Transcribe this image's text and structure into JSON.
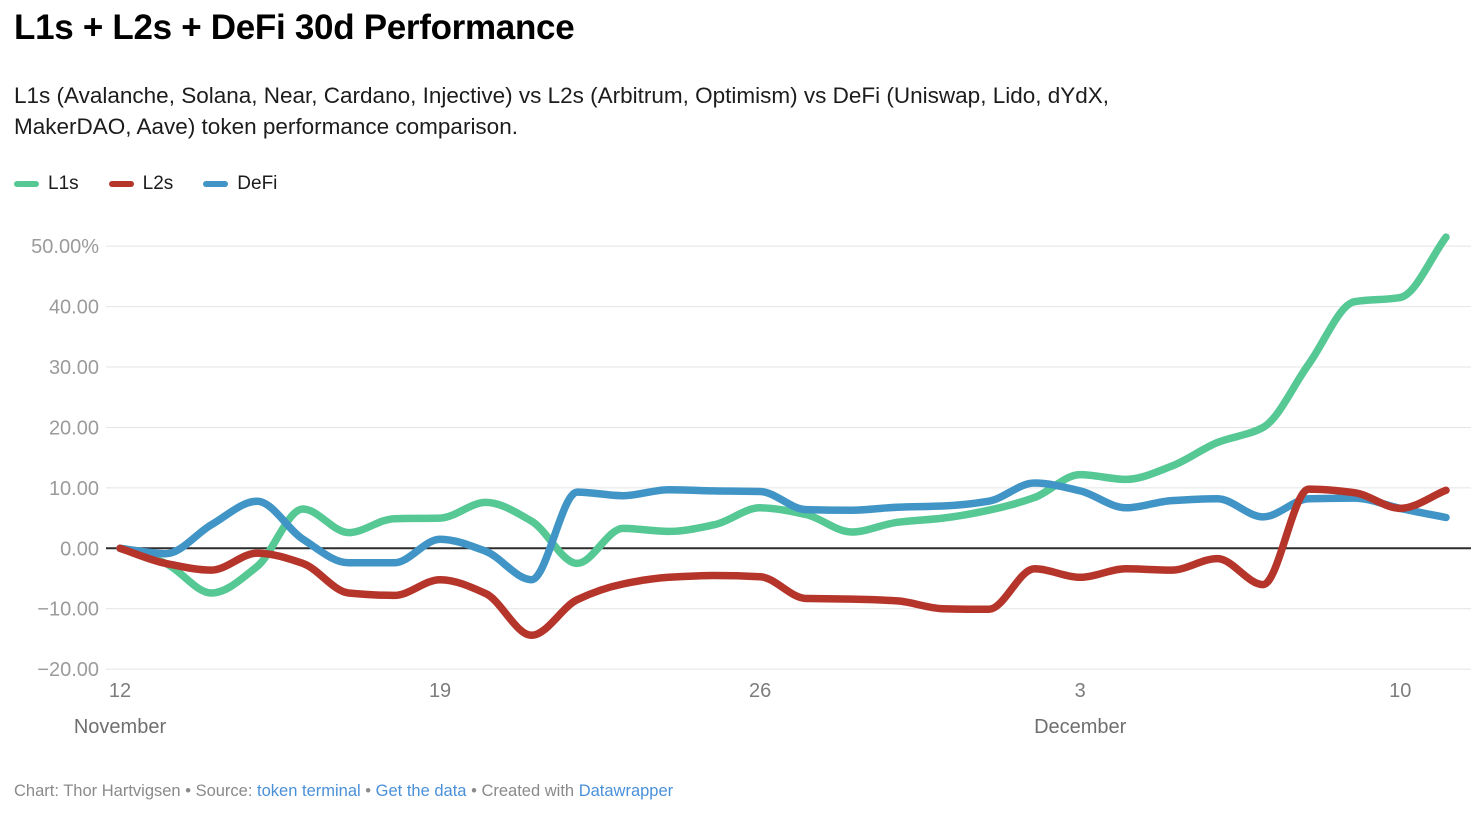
{
  "header": {
    "title": "L1s + L2s + DeFi 30d Performance",
    "subtitle_lines": [
      "L1s (Avalanche, Solana, Near, Cardano, Injective) vs L2s (Arbitrum, Optimism) vs DeFi (Uniswap, Lido, dYdX,",
      "MakerDAO, Aave) token performance comparison."
    ]
  },
  "legend": {
    "items": [
      {
        "label": "L1s",
        "color": "#55c894"
      },
      {
        "label": "L2s",
        "color": "#b5352b"
      },
      {
        "label": "DeFi",
        "color": "#4195c6"
      }
    ]
  },
  "footer": {
    "chart_credit": "Chart: Thor Hartvigsen",
    "bullet": "•",
    "source_label": "Source:",
    "source_link": "token terminal",
    "get_data_link": "Get the data",
    "created_with": "Created with",
    "datawrapper_link": "Datawrapper"
  },
  "chart_data": {
    "type": "line",
    "title": "L1s + L2s + DeFi 30d Performance",
    "x_unit": "date",
    "x": [
      "Nov 12",
      "Nov 13",
      "Nov 14",
      "Nov 15",
      "Nov 16",
      "Nov 17",
      "Nov 18",
      "Nov 19",
      "Nov 20",
      "Nov 21",
      "Nov 22",
      "Nov 23",
      "Nov 24",
      "Nov 25",
      "Nov 26",
      "Nov 27",
      "Nov 28",
      "Nov 29",
      "Nov 30",
      "Dec 1",
      "Dec 2",
      "Dec 3",
      "Dec 4",
      "Dec 5",
      "Dec 6",
      "Dec 7",
      "Dec 8",
      "Dec 9",
      "Dec 10",
      "Dec 11"
    ],
    "series": [
      {
        "name": "L1s",
        "color": "#55c894",
        "values": [
          0,
          -2.5,
          -7.4,
          -3.0,
          6.5,
          2.6,
          4.9,
          5.0,
          7.6,
          4.5,
          -2.5,
          3.3,
          2.8,
          3.9,
          6.7,
          5.6,
          2.7,
          4.3,
          5.0,
          6.3,
          8.4,
          12.2,
          11.4,
          13.6,
          17.5,
          20.0,
          30.5,
          40.8,
          41.5,
          51.5
        ]
      },
      {
        "name": "DeFi",
        "color": "#4195c6",
        "values": [
          0,
          -0.9,
          3.9,
          7.8,
          1.5,
          -2.4,
          -2.4,
          1.5,
          -0.5,
          -5.2,
          9.3,
          8.7,
          9.7,
          9.5,
          9.4,
          6.4,
          6.3,
          6.8,
          7.0,
          7.8,
          10.8,
          9.5,
          6.7,
          7.9,
          8.2,
          5.2,
          8.2,
          8.3,
          6.6,
          5.1
        ]
      },
      {
        "name": "L2s",
        "color": "#b5352b",
        "values": [
          0,
          -2.5,
          -3.6,
          -0.8,
          -2.5,
          -7.4,
          -7.8,
          -5.2,
          -7.5,
          -14.4,
          -8.5,
          -5.9,
          -4.8,
          -4.5,
          -4.7,
          -8.3,
          -8.4,
          -8.7,
          -10.0,
          -10.1,
          -3.4,
          -4.8,
          -3.4,
          -3.6,
          -1.7,
          -6.0,
          9.8,
          9.2,
          6.6,
          9.6
        ]
      }
    ],
    "y_axis": {
      "ticks": [
        {
          "value": 50,
          "label": "50.00%"
        },
        {
          "value": 40,
          "label": "40.00"
        },
        {
          "value": 30,
          "label": "30.00"
        },
        {
          "value": 20,
          "label": "20.00"
        },
        {
          "value": 10,
          "label": "10.00"
        },
        {
          "value": 0,
          "label": "0.00"
        },
        {
          "value": -10,
          "label": "−10.00"
        },
        {
          "value": -20,
          "label": "−20.00"
        }
      ],
      "ylim": [
        -20,
        55
      ],
      "grid": true
    },
    "x_axis": {
      "ticks": [
        {
          "index": 0,
          "label": "12",
          "month": "November"
        },
        {
          "index": 7,
          "label": "19"
        },
        {
          "index": 14,
          "label": "26"
        },
        {
          "index": 21,
          "label": "3",
          "month": "December"
        },
        {
          "index": 28,
          "label": "10"
        }
      ]
    },
    "legend_position": "top-left",
    "zero_line_color": "#2d2d2d",
    "grid_color": "#e4e4e4"
  }
}
